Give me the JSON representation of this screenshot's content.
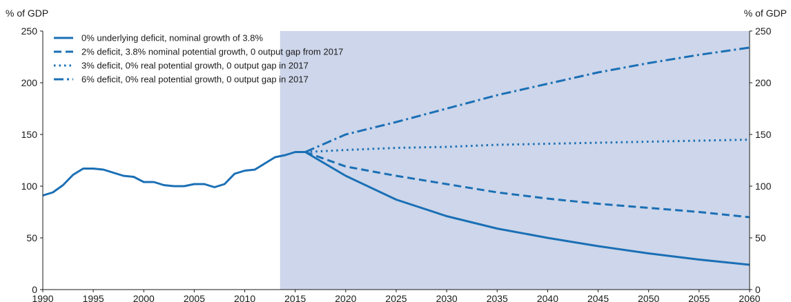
{
  "chart_data": {
    "type": "line",
    "y_unit_left": "% of GDP",
    "y_unit_right": "% of GDP",
    "ylim": [
      0,
      250
    ],
    "yticks": [
      0,
      50,
      100,
      150,
      200,
      250
    ],
    "xlim": [
      1990,
      2060
    ],
    "xticks": [
      1990,
      1995,
      2000,
      2005,
      2010,
      2015,
      2020,
      2025,
      2030,
      2035,
      2040,
      2045,
      2050,
      2055,
      2060
    ],
    "projection_shading_start": 2013.5,
    "colors": {
      "line": "#1a6fb5",
      "shade": "#cdd6ea"
    },
    "legend_position": "top-left",
    "series": [
      {
        "name": "0% underlying deficit, nominal growth of 3.8%",
        "dash": "solid",
        "x": [
          1990,
          1991,
          1992,
          1993,
          1994,
          1995,
          1996,
          1997,
          1998,
          1999,
          2000,
          2001,
          2002,
          2003,
          2004,
          2005,
          2006,
          2007,
          2008,
          2009,
          2010,
          2011,
          2012,
          2013,
          2014,
          2015,
          2016,
          2020,
          2025,
          2030,
          2035,
          2040,
          2045,
          2050,
          2055,
          2060
        ],
        "values": [
          91,
          94,
          101,
          111,
          117,
          117,
          116,
          113,
          110,
          109,
          104,
          104,
          101,
          100,
          100,
          102,
          102,
          99,
          102,
          112,
          115,
          116,
          122,
          128,
          130,
          133,
          133,
          110,
          87,
          71,
          59,
          50,
          42,
          35,
          29,
          24
        ]
      },
      {
        "name": "2% deficit, 3.8% nominal potential growth, 0 output gap from 2017",
        "dash": "dashed",
        "x": [
          2016,
          2020,
          2025,
          2030,
          2035,
          2040,
          2045,
          2050,
          2055,
          2060
        ],
        "values": [
          133,
          119,
          110,
          102,
          94,
          88,
          83,
          79,
          75,
          70
        ]
      },
      {
        "name": "3% deficit, 0% real potential growth, 0 output gap in 2017",
        "dash": "dotted",
        "x": [
          2016,
          2020,
          2025,
          2030,
          2035,
          2040,
          2045,
          2050,
          2055,
          2060
        ],
        "values": [
          133,
          135,
          137,
          138,
          140,
          141,
          142,
          143,
          144,
          145
        ]
      },
      {
        "name": "6% deficit, 0% real potential growth, 0 output gap in 2017",
        "dash": "dashdot",
        "x": [
          2016,
          2020,
          2025,
          2030,
          2035,
          2040,
          2045,
          2050,
          2055,
          2060
        ],
        "values": [
          133,
          150,
          162,
          175,
          188,
          199,
          210,
          219,
          227,
          234
        ]
      }
    ]
  }
}
